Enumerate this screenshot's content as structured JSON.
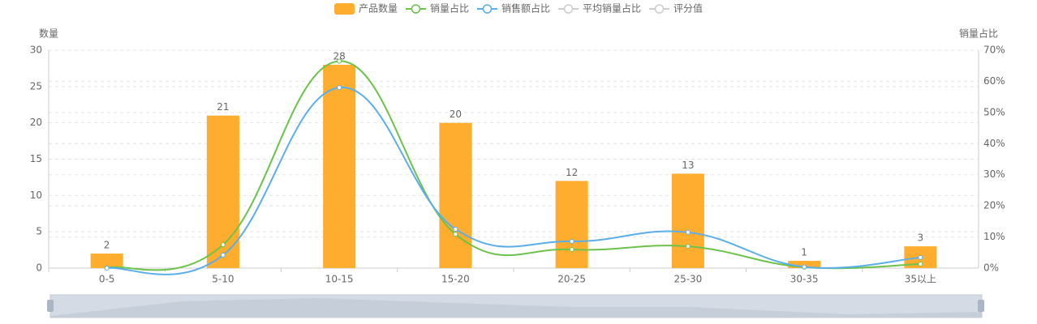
{
  "chart_data": {
    "type": "bar-line",
    "y_axis_title": "数量",
    "y2_axis_title": "销量占比",
    "categories": [
      "0-5",
      "5-10",
      "10-15",
      "15-20",
      "20-25",
      "25-30",
      "30-35",
      "35以上"
    ],
    "ylim": [
      0,
      30
    ],
    "yticks": [
      0,
      5,
      10,
      15,
      20,
      25,
      30
    ],
    "y2lim": [
      0,
      70
    ],
    "y2ticks": [
      {
        "value": 0,
        "label": "0%"
      },
      {
        "value": 10,
        "label": "10%"
      },
      {
        "value": 20,
        "label": "20%"
      },
      {
        "value": 30,
        "label": "30%"
      },
      {
        "value": 40,
        "label": "40%"
      },
      {
        "value": 50,
        "label": "50%"
      },
      {
        "value": 60,
        "label": "60%"
      },
      {
        "value": 70,
        "label": "70%"
      }
    ],
    "grid": true,
    "series": [
      {
        "name": "产品数量",
        "type": "bar",
        "color": "#ffad2e",
        "visible": true,
        "values": [
          2,
          21,
          28,
          20,
          12,
          13,
          1,
          3
        ]
      },
      {
        "name": "销量占比",
        "type": "line",
        "axis": "y2",
        "color": "#6cc24a",
        "visible": true,
        "values": [
          0.1,
          7.5,
          66.5,
          10.9,
          6.0,
          7.0,
          0.3,
          1.3
        ]
      },
      {
        "name": "销售额占比",
        "type": "line",
        "axis": "y2",
        "color": "#5aaeea",
        "visible": true,
        "values": [
          0,
          4.2,
          58,
          12.5,
          8.6,
          11.5,
          0.4,
          3.4
        ]
      },
      {
        "name": "平均销量占比",
        "type": "line",
        "axis": "y2",
        "color": "#cccccc",
        "visible": false,
        "values": [
          null,
          null,
          null,
          null,
          null,
          null,
          null,
          null
        ]
      },
      {
        "name": "评分值",
        "type": "line",
        "axis": "y2",
        "color": "#cccccc",
        "visible": false,
        "values": [
          null,
          null,
          null,
          null,
          null,
          null,
          null,
          null
        ]
      }
    ]
  }
}
